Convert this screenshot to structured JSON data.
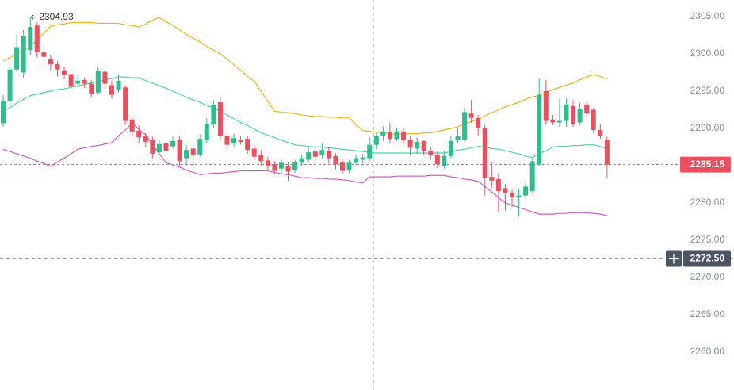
{
  "chart_data": {
    "type": "candlestick",
    "up_color": "#2ebd8d",
    "down_color": "#ee4f5e",
    "open": [
      2290.7,
      2293.6,
      2297.9,
      2297.5,
      2300.5,
      2303.8,
      2300.2,
      2299.3,
      2298.6,
      2297.8,
      2297.3,
      2296.0,
      2296.5,
      2296.0,
      2294.8,
      2297.6,
      2295.8,
      2295.2,
      2295.5,
      2291.2,
      2289.7,
      2289.0,
      2288.5,
      2286.8,
      2288.0,
      2287.6,
      2288.5,
      2286.0,
      2287.3,
      2286.5,
      2288.4,
      2290.5,
      2293.5,
      2289.0,
      2288.0,
      2288.5,
      2288.6,
      2287.3,
      2286.5,
      2285.7,
      2285.2,
      2284.6,
      2285.0,
      2284.4,
      2285.4,
      2285.8,
      2286.9,
      2286.5,
      2287.0,
      2286.3,
      2285.4,
      2284.4,
      2285.4,
      2285.8,
      2286.0,
      2287.8,
      2289.0,
      2289.5,
      2288.6,
      2289.6,
      2288.5,
      2287.3,
      2288.3,
      2287.0,
      2286.5,
      2285.0,
      2286.3,
      2288.4,
      2288.5,
      2292.0,
      2291.4,
      2290.0,
      2283.5,
      2283.2,
      2282.0,
      2281.4,
      2280.8,
      2281.0,
      2281.6,
      2285.2,
      2295.0,
      2291.2,
      2290.8,
      2291.0,
      2293.0,
      2290.8,
      2293.2,
      2292.5,
      2289.8,
      2288.5
    ],
    "high": [
      2294.5,
      2298.5,
      2302.6,
      2303.2,
      2304.93,
      2304.2,
      2301.0,
      2299.8,
      2299.0,
      2298.3,
      2297.9,
      2297.2,
      2296.8,
      2296.5,
      2298.2,
      2298.0,
      2296.4,
      2297.3,
      2295.8,
      2291.8,
      2290.4,
      2289.4,
      2288.9,
      2288.4,
      2288.5,
      2288.9,
      2288.9,
      2287.8,
      2287.8,
      2289.2,
      2291.4,
      2293.8,
      2294.2,
      2289.5,
      2289.3,
      2289.0,
      2289.0,
      2287.8,
      2287.0,
      2286.2,
      2285.6,
      2285.8,
      2285.5,
      2285.8,
      2286.5,
      2287.5,
      2287.5,
      2288.0,
      2287.5,
      2286.7,
      2285.8,
      2285.8,
      2286.5,
      2286.6,
      2288.8,
      2289.5,
      2290.3,
      2290.8,
      2290.1,
      2290.0,
      2289.0,
      2288.8,
      2288.5,
      2287.5,
      2286.9,
      2287.0,
      2289.0,
      2290.0,
      2292.8,
      2293.8,
      2291.8,
      2290.5,
      2285.5,
      2284.0,
      2282.5,
      2281.8,
      2281.8,
      2282.8,
      2286.0,
      2296.7,
      2296.5,
      2291.8,
      2294.0,
      2294.0,
      2293.8,
      2293.5,
      2293.6,
      2292.8,
      2290.6,
      2288.9
    ],
    "low": [
      2290.2,
      2293.0,
      2297.5,
      2296.8,
      2299.8,
      2299.5,
      2298.5,
      2297.8,
      2297.0,
      2296.6,
      2295.3,
      2295.5,
      2295.4,
      2294.2,
      2294.5,
      2295.3,
      2294.0,
      2294.8,
      2290.5,
      2289.0,
      2288.0,
      2287.5,
      2286.0,
      2286.4,
      2286.5,
      2287.3,
      2285.0,
      2285.2,
      2284.5,
      2286.2,
      2288.0,
      2290.0,
      2288.5,
      2287.2,
      2287.5,
      2287.8,
      2286.6,
      2285.8,
      2285.0,
      2284.4,
      2283.8,
      2284.0,
      2283.0,
      2284.0,
      2285.0,
      2285.5,
      2285.6,
      2286.0,
      2285.3,
      2284.5,
      2283.8,
      2284.0,
      2285.0,
      2285.3,
      2285.6,
      2287.2,
      2288.4,
      2288.0,
      2288.3,
      2288.0,
      2286.4,
      2286.6,
      2286.5,
      2285.8,
      2284.6,
      2284.6,
      2286.0,
      2288.0,
      2288.2,
      2290.8,
      2289.0,
      2281.0,
      2282.0,
      2278.8,
      2279.0,
      2279.5,
      2278.2,
      2280.6,
      2281.4,
      2285.0,
      2290.5,
      2290.4,
      2290.2,
      2290.2,
      2290.2,
      2290.4,
      2291.5,
      2289.4,
      2288.6,
      2283.3
    ],
    "close": [
      2293.6,
      2297.9,
      2300.9,
      2302.4,
      2303.6,
      2300.2,
      2299.6,
      2298.6,
      2297.9,
      2297.2,
      2295.6,
      2296.4,
      2296.0,
      2294.6,
      2297.7,
      2296.0,
      2294.5,
      2296.4,
      2291.0,
      2289.6,
      2288.8,
      2288.2,
      2286.6,
      2287.9,
      2287.0,
      2288.3,
      2285.6,
      2287.1,
      2286.4,
      2288.6,
      2290.6,
      2293.2,
      2289.0,
      2287.8,
      2288.7,
      2288.2,
      2287.1,
      2286.2,
      2285.6,
      2284.9,
      2284.3,
      2285.4,
      2284.2,
      2285.5,
      2286.0,
      2286.8,
      2286.2,
      2287.1,
      2286.0,
      2285.2,
      2284.3,
      2285.4,
      2286.0,
      2286.1,
      2287.8,
      2289.0,
      2289.6,
      2288.6,
      2289.6,
      2288.4,
      2287.4,
      2288.2,
      2287.0,
      2286.4,
      2285.2,
      2286.3,
      2288.3,
      2289.0,
      2292.2,
      2291.4,
      2290.0,
      2283.4,
      2283.0,
      2281.6,
      2281.3,
      2280.8,
      2281.0,
      2282.2,
      2285.6,
      2294.5,
      2291.0,
      2290.8,
      2291.0,
      2293.2,
      2290.6,
      2292.6,
      2292.0,
      2289.8,
      2289.0,
      2285.15
    ],
    "bands": [
      {
        "color": "#f2b21b",
        "values": [
          2299.0,
          2299.5,
          2300.0,
          2300.5,
          2301.0,
          2301.9,
          2302.8,
          2303.7,
          2303.9,
          2304.0,
          2304.2,
          2304.2,
          2304.2,
          2304.2,
          2304.1,
          2304.1,
          2304.1,
          2304.1,
          2303.9,
          2303.8,
          2303.6,
          2304.0,
          2304.5,
          2304.9,
          2304.3,
          2303.8,
          2303.2,
          2302.6,
          2302.1,
          2301.6,
          2301.0,
          2300.5,
          2300.0,
          2299.3,
          2298.5,
          2297.8,
          2297.0,
          2296.3,
          2295.0,
          2293.6,
          2292.3,
          2292.2,
          2292.1,
          2292.0,
          2291.8,
          2291.7,
          2291.6,
          2291.6,
          2291.5,
          2291.5,
          2291.4,
          2291.4,
          2290.5,
          2289.7,
          2289.6,
          2289.5,
          2289.4,
          2289.3,
          2289.2,
          2289.2,
          2289.3,
          2289.3,
          2289.4,
          2289.4,
          2289.6,
          2289.8,
          2290.0,
          2290.2,
          2290.6,
          2290.9,
          2291.3,
          2291.7,
          2292.1,
          2292.5,
          2292.9,
          2293.2,
          2293.5,
          2293.9,
          2294.2,
          2294.5,
          2294.8,
          2295.2,
          2295.5,
          2295.8,
          2296.1,
          2296.5,
          2296.9,
          2297.2,
          2297.0,
          2296.6
        ]
      },
      {
        "color": "#4fd1b0",
        "values": [
          2292.3,
          2292.8,
          2293.4,
          2293.9,
          2294.4,
          2294.6,
          2294.8,
          2295.0,
          2295.2,
          2295.3,
          2295.5,
          2295.7,
          2295.9,
          2296.1,
          2296.3,
          2296.5,
          2296.7,
          2296.9,
          2296.9,
          2296.8,
          2296.8,
          2296.4,
          2296.1,
          2295.7,
          2295.4,
          2295.0,
          2294.6,
          2294.2,
          2293.8,
          2293.5,
          2293.1,
          2292.7,
          2292.3,
          2291.8,
          2291.3,
          2290.8,
          2290.4,
          2289.9,
          2289.4,
          2289.1,
          2288.8,
          2288.4,
          2288.1,
          2287.8,
          2287.7,
          2287.6,
          2287.5,
          2287.5,
          2287.4,
          2287.3,
          2287.2,
          2287.1,
          2287.0,
          2286.9,
          2286.8,
          2286.7,
          2286.7,
          2286.7,
          2286.7,
          2286.7,
          2286.7,
          2286.7,
          2286.7,
          2286.7,
          2286.7,
          2286.7,
          2286.9,
          2287.1,
          2287.2,
          2287.4,
          2287.6,
          2287.5,
          2287.3,
          2287.2,
          2287.0,
          2286.8,
          2286.6,
          2286.3,
          2286.1,
          2286.6,
          2287.0,
          2287.5,
          2287.6,
          2287.6,
          2287.7,
          2287.7,
          2287.8,
          2287.8,
          2287.6,
          2287.3
        ]
      },
      {
        "color": "#d05bc7",
        "values": [
          2287.2,
          2286.9,
          2286.6,
          2286.3,
          2286.0,
          2285.6,
          2285.3,
          2284.9,
          2285.5,
          2286.0,
          2286.6,
          2287.2,
          2287.4,
          2287.6,
          2287.7,
          2287.9,
          2288.1,
          2289.0,
          2289.8,
          2290.7,
          2289.9,
          2289.1,
          2287.9,
          2286.6,
          2285.4,
          2285.1,
          2284.8,
          2284.4,
          2284.1,
          2283.8,
          2283.9,
          2284.0,
          2284.0,
          2284.1,
          2284.2,
          2284.3,
          2284.3,
          2284.3,
          2284.3,
          2284.3,
          2284.1,
          2283.9,
          2283.8,
          2283.6,
          2283.4,
          2283.4,
          2283.3,
          2283.3,
          2283.2,
          2283.2,
          2283.1,
          2283.0,
          2282.8,
          2282.7,
          2283.5,
          2283.5,
          2283.5,
          2283.5,
          2283.6,
          2283.6,
          2283.6,
          2283.6,
          2283.6,
          2283.7,
          2283.7,
          2283.7,
          2283.5,
          2283.4,
          2283.2,
          2283.1,
          2282.9,
          2282.2,
          2281.5,
          2280.7,
          2280.0,
          2279.7,
          2279.4,
          2279.1,
          2278.8,
          2278.5,
          2278.5,
          2278.5,
          2278.6,
          2278.6,
          2278.7,
          2278.7,
          2278.7,
          2278.6,
          2278.5,
          2278.3
        ]
      }
    ],
    "ylim": [
      2254.9,
      2307.23
    ],
    "yticks": [
      {
        "value": 2260,
        "label": "2260.00"
      },
      {
        "value": 2265,
        "label": "2265.00"
      },
      {
        "value": 2270,
        "label": "2270.00"
      },
      {
        "value": 2275,
        "label": "2275.00"
      },
      {
        "value": 2280,
        "label": "2280.00"
      },
      {
        "value": 2285,
        "label": "2285.00"
      },
      {
        "value": 2290,
        "label": "2290.00"
      },
      {
        "value": 2295,
        "label": "2295.00"
      },
      {
        "value": 2300,
        "label": "2300.00"
      },
      {
        "value": 2305,
        "label": "2305.00"
      }
    ],
    "crosshair": {
      "value": 2272.5,
      "label": "2272.50"
    },
    "last_price_color": "#ee4f5e",
    "crosshair_color": "#4b5566"
  }
}
